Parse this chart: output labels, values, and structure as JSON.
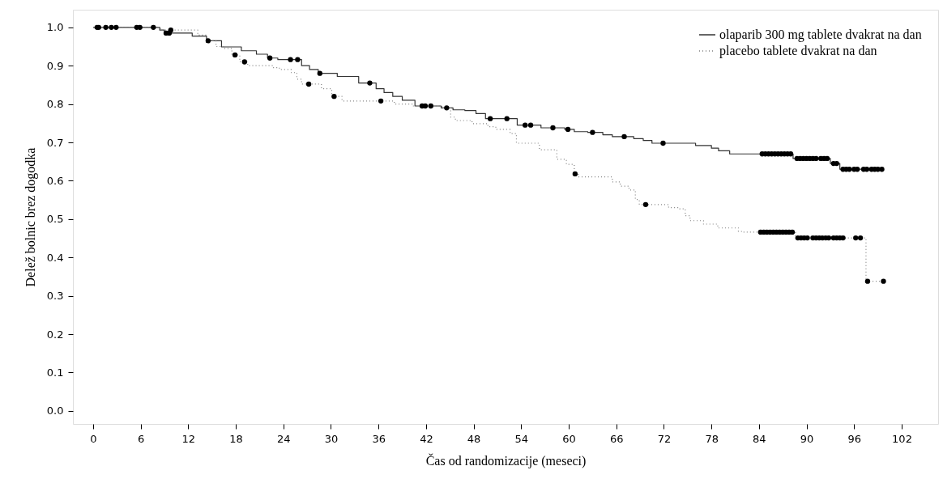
{
  "chart_data": {
    "type": "step",
    "xlabel": "Čas od randomizacije (meseci)",
    "ylabel": "Delež bolnic brez dogodka",
    "xlim": [
      -2.55,
      106.6
    ],
    "ylim": [
      -0.034,
      1.046
    ],
    "xticks": [
      0,
      6,
      12,
      18,
      24,
      30,
      36,
      42,
      48,
      54,
      60,
      66,
      72,
      78,
      84,
      90,
      96,
      102
    ],
    "yticks": [
      {
        "value": 0,
        "label": "0.0"
      },
      {
        "value": 0.1,
        "label": "0.1"
      },
      {
        "value": 0.2,
        "label": "0.2"
      },
      {
        "value": 0.3,
        "label": "0.3"
      },
      {
        "value": 0.4,
        "label": "0.4"
      },
      {
        "value": 0.5,
        "label": "0.5"
      },
      {
        "value": 0.6,
        "label": "0.6"
      },
      {
        "value": 0.7,
        "label": "0.7"
      },
      {
        "value": 0.8,
        "label": "0.8"
      },
      {
        "value": 0.9,
        "label": "0.9"
      },
      {
        "value": 1,
        "label": "1.0"
      }
    ],
    "grid": false,
    "legend": "top right",
    "series": [
      {
        "name": "olaparib 300 mg tablete dvakrat na dan",
        "color": "#333333",
        "line_style": "solid",
        "x": [
          0,
          8.4,
          9.0,
          12.5,
          14.3,
          16.2,
          18.7,
          20.6,
          22.0,
          23.3,
          26.3,
          27.3,
          28.4,
          30.8,
          33.5,
          35.7,
          36.7,
          37.8,
          39.0,
          40.6,
          43.9,
          45.4,
          46.9,
          48.3,
          49.5,
          53.5,
          56.5,
          59.5,
          60.7,
          62.4,
          64.3,
          65.5,
          68.2,
          69.4,
          70.5,
          76.0,
          78.0,
          78.9,
          80.3,
          88.3,
          93.0,
          94.2,
          99.7
        ],
        "values": [
          1.0,
          0.993,
          0.985,
          0.977,
          0.965,
          0.949,
          0.939,
          0.93,
          0.92,
          0.916,
          0.9,
          0.89,
          0.88,
          0.872,
          0.855,
          0.84,
          0.83,
          0.82,
          0.81,
          0.795,
          0.79,
          0.785,
          0.783,
          0.775,
          0.762,
          0.745,
          0.738,
          0.734,
          0.728,
          0.726,
          0.72,
          0.715,
          0.71,
          0.705,
          0.698,
          0.692,
          0.685,
          0.678,
          0.67,
          0.658,
          0.645,
          0.63,
          0.63
        ]
      },
      {
        "name": "placebo tablete dvakrat na dan",
        "color": "#808080",
        "line_style": "dotted",
        "x": [
          0,
          8.5,
          13.2,
          14.3,
          15.5,
          16.5,
          17.5,
          18.5,
          19.5,
          22.7,
          23.5,
          25.0,
          25.7,
          26.3,
          28.8,
          30.1,
          31.4,
          38.0,
          40.3,
          44.0,
          45.1,
          45.7,
          47.8,
          49.8,
          50.8,
          52.6,
          53.4,
          56.3,
          58.5,
          59.7,
          60.7,
          61.2,
          65.5,
          66.5,
          67.6,
          68.4,
          68.9,
          72.6,
          74.0,
          74.7,
          75.3,
          77.0,
          78.8,
          81.4,
          81.8,
          88.6,
          97.5,
          99.7
        ],
        "values": [
          1.0,
          0.993,
          0.98,
          0.965,
          0.95,
          0.945,
          0.928,
          0.91,
          0.9,
          0.895,
          0.89,
          0.882,
          0.865,
          0.852,
          0.84,
          0.82,
          0.808,
          0.8,
          0.795,
          0.79,
          0.766,
          0.757,
          0.749,
          0.741,
          0.734,
          0.723,
          0.698,
          0.681,
          0.656,
          0.643,
          0.618,
          0.61,
          0.597,
          0.586,
          0.576,
          0.551,
          0.538,
          0.53,
          0.527,
          0.509,
          0.496,
          0.487,
          0.477,
          0.468,
          0.466,
          0.451,
          0.338,
          0.338
        ]
      },
      {
        "type": "scatter",
        "marker": "circle",
        "color": "#000000",
        "x": [
          0.5,
          0.7,
          1.6,
          2.3,
          2.9,
          5.5,
          5.9,
          7.6,
          9.2,
          9.6,
          14.5,
          22.3,
          24.9,
          25.8,
          28.6,
          34.9,
          41.5,
          41.9,
          42.6,
          44.6,
          50.1,
          52.2,
          54.5,
          55.2,
          58.0,
          59.9,
          63.0,
          67.0,
          71.9,
          84.4,
          84.8,
          85.2,
          85.6,
          86.0,
          86.4,
          86.8,
          87.2,
          87.6,
          88.0,
          88.8,
          89.2,
          89.6,
          90.0,
          90.4,
          90.8,
          91.2,
          91.8,
          92.2,
          92.6,
          93.4,
          93.8,
          94.6,
          95.0,
          95.4,
          96.0,
          96.4,
          97.2,
          97.6,
          98.2,
          98.6,
          99.0,
          99.5
        ],
        "values": [
          1.0,
          1.0,
          1.0,
          1.0,
          1.0,
          1.0,
          1.0,
          1.0,
          0.985,
          0.985,
          0.965,
          0.92,
          0.916,
          0.916,
          0.88,
          0.855,
          0.795,
          0.795,
          0.795,
          0.79,
          0.762,
          0.762,
          0.745,
          0.745,
          0.738,
          0.734,
          0.726,
          0.715,
          0.698,
          0.67,
          0.67,
          0.67,
          0.67,
          0.67,
          0.67,
          0.67,
          0.67,
          0.67,
          0.67,
          0.658,
          0.658,
          0.658,
          0.658,
          0.658,
          0.658,
          0.658,
          0.658,
          0.658,
          0.658,
          0.645,
          0.645,
          0.63,
          0.63,
          0.63,
          0.63,
          0.63,
          0.63,
          0.63,
          0.63,
          0.63,
          0.63,
          0.63
        ]
      },
      {
        "type": "scatter",
        "marker": "circle",
        "color": "#000000",
        "x": [
          9.8,
          17.9,
          19.1,
          27.2,
          30.4,
          36.3,
          60.8,
          69.7,
          84.2,
          84.6,
          85.0,
          85.4,
          85.8,
          86.2,
          86.6,
          87.0,
          87.4,
          87.8,
          88.2,
          88.9,
          89.3,
          89.7,
          90.1,
          90.8,
          91.2,
          91.6,
          92.0,
          92.4,
          92.8,
          93.4,
          93.8,
          94.2,
          94.6,
          96.2,
          96.8,
          97.7,
          99.7
        ],
        "values": [
          0.993,
          0.928,
          0.91,
          0.852,
          0.82,
          0.808,
          0.618,
          0.538,
          0.466,
          0.466,
          0.466,
          0.466,
          0.466,
          0.466,
          0.466,
          0.466,
          0.466,
          0.466,
          0.466,
          0.451,
          0.451,
          0.451,
          0.451,
          0.451,
          0.451,
          0.451,
          0.451,
          0.451,
          0.451,
          0.451,
          0.451,
          0.451,
          0.451,
          0.451,
          0.451,
          0.338,
          0.338
        ]
      }
    ]
  }
}
